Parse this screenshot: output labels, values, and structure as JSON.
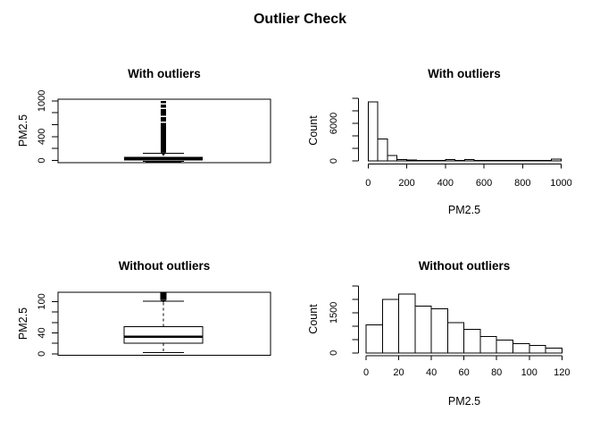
{
  "main_title": "Outlier Check",
  "chart_data": [
    {
      "id": "boxplot-with-outliers",
      "type": "boxplot",
      "title": "With outliers",
      "ylabel": "PM2.5",
      "ylim": [
        0,
        1000
      ],
      "yticks": [
        0,
        200,
        400,
        600,
        800,
        1000
      ],
      "ytick_labels": [
        "0",
        "",
        "400",
        "",
        "",
        "1000"
      ],
      "stats": {
        "whisker_low": 1,
        "q1": 25,
        "median": 35,
        "q3": 60,
        "whisker_high": 120
      },
      "outliers": {
        "column_from": 140,
        "column_to": 1000,
        "gap_values": [
          640,
          740,
          875,
          950
        ]
      }
    },
    {
      "id": "hist-with-outliers",
      "type": "histogram",
      "title": "With outliers",
      "xlabel": "PM2.5",
      "ylabel": "Count",
      "bin_start": 0,
      "bin_width": 50,
      "counts": [
        9400,
        3500,
        860,
        200,
        120,
        100,
        90,
        80,
        250,
        100,
        230,
        80,
        60,
        50,
        45,
        40,
        35,
        30,
        25,
        260
      ],
      "xticks": [
        0,
        200,
        400,
        600,
        800,
        1000
      ],
      "yticks": [
        0,
        2000,
        4000,
        6000,
        8000,
        10000
      ],
      "ytick_labels": [
        "0",
        "",
        "",
        "6000",
        "",
        ""
      ]
    },
    {
      "id": "boxplot-without-outliers",
      "type": "boxplot",
      "title": "Without outliers",
      "ylabel": "PM2.5",
      "ylim": [
        0,
        120
      ],
      "yticks": [
        0,
        20,
        40,
        60,
        80,
        100
      ],
      "ytick_labels": [
        "0",
        "",
        "40",
        "",
        "",
        "100"
      ],
      "stats": {
        "whisker_low": 2,
        "q1": 20,
        "median": 33,
        "q3": 52,
        "whisker_high": 101
      },
      "outliers": {
        "cluster_from": 103,
        "cluster_to": 117
      }
    },
    {
      "id": "hist-without-outliers",
      "type": "histogram",
      "title": "Without outliers",
      "xlabel": "PM2.5",
      "ylabel": "Count",
      "bin_start": 0,
      "bin_width": 10,
      "counts": [
        1050,
        2000,
        2200,
        1750,
        1650,
        1130,
        870,
        610,
        480,
        350,
        280,
        180
      ],
      "xticks": [
        0,
        20,
        40,
        60,
        80,
        100,
        120
      ],
      "yticks": [
        0,
        500,
        1000,
        1500,
        2000,
        2500
      ],
      "ytick_labels": [
        "0",
        "",
        "",
        "1500",
        "",
        ""
      ]
    }
  ]
}
